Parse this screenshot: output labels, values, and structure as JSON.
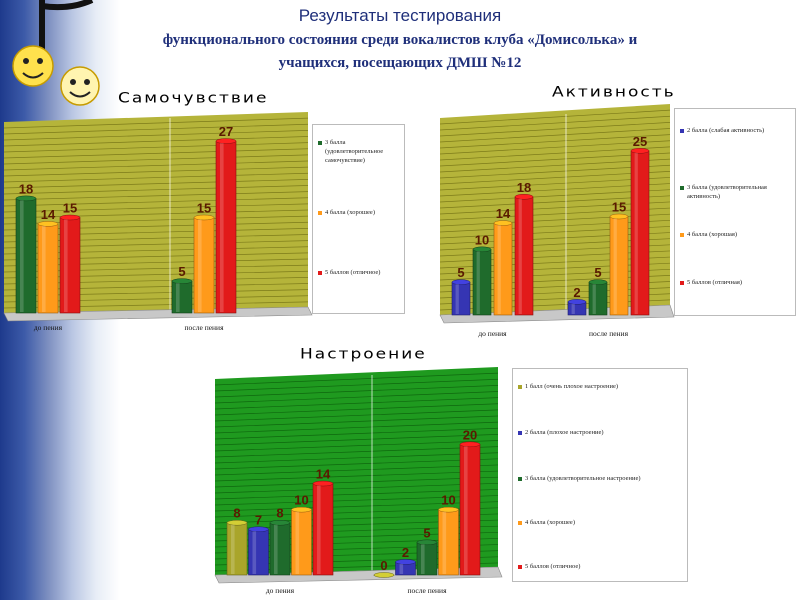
{
  "header": {
    "line1": "Результаты тестирования",
    "line2": "функционального состояния среди вокалистов клуба «Домисолька»  и",
    "line3": "учащихся, посещающих ДМШ №12"
  },
  "colors": {
    "dark_green": "#1f6b2c",
    "orange": "#ff9a1a",
    "red": "#e21a1a",
    "blue": "#3535b3",
    "olive": "#a9a52a",
    "wall_olive": "#b5b43a",
    "wall_green": "#1f9a1f"
  },
  "chart_data": [
    {
      "id": "wellbeing",
      "type": "bar",
      "title": "Самочувствие",
      "categories": [
        "до пения",
        "после пения"
      ],
      "series": [
        {
          "name": "3 балла (удовлетворительное самочувствие)",
          "color": "#1f6b2c",
          "values": [
            18,
            5
          ]
        },
        {
          "name": "4 балла (хорошее)",
          "color": "#ff9a1a",
          "values": [
            14,
            15
          ]
        },
        {
          "name": "5 баллов (отличное)",
          "color": "#e21a1a",
          "values": [
            15,
            27
          ]
        }
      ],
      "ylim": [
        0,
        30
      ],
      "legend": "right",
      "grid": true
    },
    {
      "id": "activity",
      "type": "bar",
      "title": "Активность",
      "categories": [
        "до пения",
        "после пения"
      ],
      "series": [
        {
          "name": "2 балла (слабая активность)",
          "color": "#3535b3",
          "values": [
            5,
            2
          ]
        },
        {
          "name": "3 балла (удовлетворительная активность)",
          "color": "#1f6b2c",
          "values": [
            10,
            5
          ]
        },
        {
          "name": "4 балла (хорошая)",
          "color": "#ff9a1a",
          "values": [
            14,
            15
          ]
        },
        {
          "name": "5 баллов (отличная)",
          "color": "#e21a1a",
          "values": [
            18,
            25
          ]
        }
      ],
      "ylim": [
        0,
        30
      ],
      "legend": "right",
      "grid": true
    },
    {
      "id": "mood",
      "type": "bar",
      "title": "Настроение",
      "categories": [
        "до пения",
        "после пения"
      ],
      "series": [
        {
          "name": "1 балл (очень плохое настроение)",
          "color": "#a9a52a",
          "values": [
            8,
            0
          ]
        },
        {
          "name": "2 балла (плохое настроение)",
          "color": "#3535b3",
          "values": [
            7,
            2
          ]
        },
        {
          "name": "3 балла (удовлетворительное настроение)",
          "color": "#1f6b2c",
          "values": [
            8,
            5
          ]
        },
        {
          "name": "4 балла (хорошее)",
          "color": "#ff9a1a",
          "values": [
            10,
            10
          ]
        },
        {
          "name": "5 баллов (отличное)",
          "color": "#e21a1a",
          "values": [
            14,
            20
          ]
        }
      ],
      "ylim": [
        0,
        30
      ],
      "legend": "right",
      "grid": true
    }
  ]
}
